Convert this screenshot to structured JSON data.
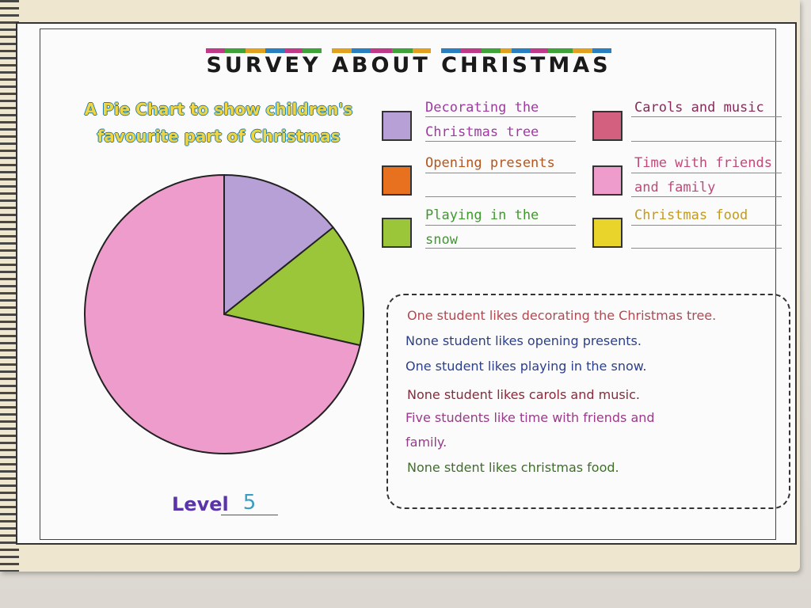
{
  "title": "SURVEY ABOUT CHRISTMAS",
  "colors": {
    "decorating": "#b7a0d6",
    "presents": "#e8711f",
    "snow": "#9cc63a",
    "carols": "#d2607e",
    "friends": "#ee9ccb",
    "food": "#e8d42a"
  },
  "chart_data": {
    "type": "pie",
    "title": "A Pie Chart to show children's favourite part of Christmas",
    "legend_position": "right",
    "slices": [
      {
        "label": "Decorating the Christmas tree",
        "value": 1,
        "color": "#b7a0d6"
      },
      {
        "label": "Opening presents",
        "value": 0,
        "color": "#e8711f"
      },
      {
        "label": "Playing in the snow",
        "value": 1,
        "color": "#9cc63a"
      },
      {
        "label": "Carols and music",
        "value": 0,
        "color": "#d2607e"
      },
      {
        "label": "Time with friends and family",
        "value": 5,
        "color": "#ee9ccb"
      },
      {
        "label": "Christmas food",
        "value": 0,
        "color": "#e8d42a"
      }
    ]
  },
  "legend": [
    {
      "key": "decorating",
      "text": "Decorating the\nChristmas tree",
      "text_color": "#a03aa3"
    },
    {
      "key": "presents",
      "text": "Opening presents",
      "text_color": "#b5561e"
    },
    {
      "key": "snow",
      "text": "Playing in the\nsnow",
      "text_color": "#3f9a2d"
    },
    {
      "key": "carols",
      "text": "Carols and music",
      "text_color": "#8a2a5a"
    },
    {
      "key": "friends",
      "text": "Time with friends\nand family",
      "text_color": "#c0497a"
    },
    {
      "key": "food",
      "text": "Christmas food",
      "text_color": "#c49a1c"
    }
  ],
  "notes": [
    {
      "text": "One student likes decorating the Christmas tree.",
      "color": "#b04a52"
    },
    {
      "text": "None student likes opening presents.",
      "color": "#2b3f8c"
    },
    {
      "text": "One student likes playing in the snow.",
      "color": "#2b3f8c"
    },
    {
      "text": "None student likes carols and music.",
      "color": "#8a2a3a"
    },
    {
      "text": "Five students like time with friends and",
      "color": "#9a3a8a"
    },
    {
      "text": "family.",
      "color": "#9a3a8a"
    },
    {
      "text": "None stdent likes christmas food.",
      "color": "#3f6f2a"
    }
  ],
  "level": {
    "label": "Level",
    "value": "5"
  }
}
